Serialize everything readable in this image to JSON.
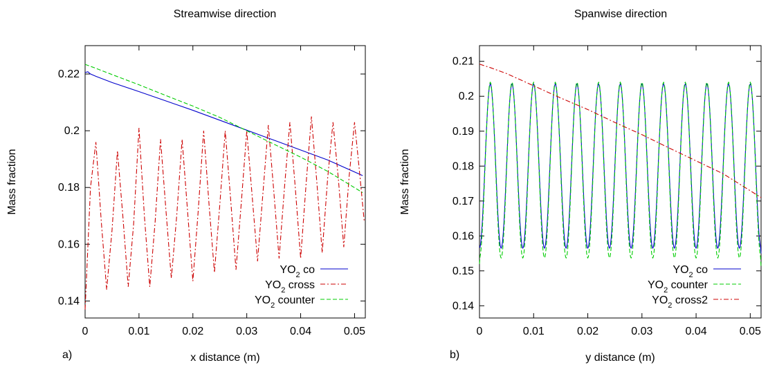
{
  "chart_data": [
    {
      "type": "line",
      "panel_label": "a)",
      "title": "Streamwise direction",
      "xlabel": "x distance (m)",
      "ylabel": "Mass fraction",
      "xlim": [
        0,
        0.052
      ],
      "ylim": [
        0.134,
        0.23
      ],
      "xticks": [
        "0",
        "0.01",
        "0.02",
        "0.03",
        "0.04",
        "0.05"
      ],
      "xtick_values": [
        0,
        0.01,
        0.02,
        0.03,
        0.04,
        0.05
      ],
      "yticks": [
        "0.14",
        "0.16",
        "0.18",
        "0.2",
        "0.22"
      ],
      "ytick_values": [
        0.14,
        0.16,
        0.18,
        0.2,
        0.22
      ],
      "legend_position": "bottom-right",
      "series": [
        {
          "name": "YO2 co",
          "legend_main": "YO",
          "legend_sub": "2",
          "legend_rest": " co",
          "color": "#0000cc",
          "dash": "solid",
          "x": [
            0,
            0.0005,
            0.001,
            0.002,
            0.005,
            0.01,
            0.015,
            0.02,
            0.025,
            0.03,
            0.035,
            0.04,
            0.045,
            0.0515
          ],
          "y": [
            0.2205,
            0.2208,
            0.22,
            0.2192,
            0.217,
            0.2138,
            0.2105,
            0.2072,
            0.2037,
            0.2002,
            0.1967,
            0.1932,
            0.1897,
            0.1842
          ]
        },
        {
          "name": "YO2 cross",
          "legend_main": "YO",
          "legend_sub": "2",
          "legend_rest": " cross",
          "color": "#cc0000",
          "dash": "dashdot",
          "x": [
            0,
            0.001,
            0.002,
            0.003,
            0.004,
            0.005,
            0.006,
            0.007,
            0.008,
            0.009,
            0.01,
            0.011,
            0.012,
            0.013,
            0.014,
            0.015,
            0.016,
            0.017,
            0.018,
            0.019,
            0.02,
            0.021,
            0.022,
            0.023,
            0.024,
            0.025,
            0.026,
            0.027,
            0.028,
            0.029,
            0.03,
            0.031,
            0.032,
            0.033,
            0.034,
            0.035,
            0.036,
            0.037,
            0.038,
            0.039,
            0.04,
            0.041,
            0.042,
            0.043,
            0.044,
            0.045,
            0.046,
            0.047,
            0.048,
            0.049,
            0.05,
            0.051,
            0.0518
          ],
          "y": [
            0.137,
            0.18,
            0.196,
            0.168,
            0.144,
            0.165,
            0.193,
            0.17,
            0.145,
            0.167,
            0.201,
            0.17,
            0.145,
            0.168,
            0.197,
            0.172,
            0.148,
            0.17,
            0.197,
            0.172,
            0.147,
            0.172,
            0.2,
            0.174,
            0.15,
            0.174,
            0.2,
            0.176,
            0.151,
            0.175,
            0.2,
            0.177,
            0.154,
            0.178,
            0.202,
            0.179,
            0.155,
            0.18,
            0.203,
            0.18,
            0.155,
            0.181,
            0.205,
            0.182,
            0.157,
            0.183,
            0.203,
            0.183,
            0.159,
            0.184,
            0.203,
            0.184,
            0.168
          ]
        },
        {
          "name": "YO2 counter",
          "legend_main": "YO",
          "legend_sub": "2",
          "legend_rest": " counter",
          "color": "#00cc00",
          "dash": "dashed",
          "x": [
            0,
            0.002,
            0.005,
            0.01,
            0.015,
            0.02,
            0.025,
            0.03,
            0.035,
            0.04,
            0.045,
            0.0515
          ],
          "y": [
            0.2234,
            0.222,
            0.2198,
            0.2162,
            0.2124,
            0.2087,
            0.2047,
            0.2,
            0.1953,
            0.1907,
            0.1857,
            0.1782
          ]
        }
      ]
    },
    {
      "type": "line",
      "panel_label": "b)",
      "title": "Spanwise direction",
      "xlabel": "y distance (m)",
      "ylabel": "Mass fraction",
      "xlim": [
        0,
        0.052
      ],
      "ylim": [
        0.1365,
        0.2145
      ],
      "xticks": [
        "0",
        "0.01",
        "0.02",
        "0.03",
        "0.04",
        "0.05"
      ],
      "xtick_values": [
        0,
        0.01,
        0.02,
        0.03,
        0.04,
        0.05
      ],
      "yticks": [
        "0.14",
        "0.15",
        "0.16",
        "0.17",
        "0.18",
        "0.19",
        "0.2",
        "0.21"
      ],
      "ytick_values": [
        0.14,
        0.15,
        0.16,
        0.17,
        0.18,
        0.19,
        0.2,
        0.21
      ],
      "legend_position": "bottom-right",
      "series": [
        {
          "name": "YO2 co",
          "legend_main": "YO",
          "legend_sub": "2",
          "legend_rest": " co",
          "color": "#0000cc",
          "dash": "solid",
          "periodic": {
            "period": 0.004,
            "phase": 0.002,
            "max": 0.2035,
            "min": 0.1565,
            "x_start": 0,
            "x_end": 0.052,
            "steps": 520,
            "start_value": 0.157,
            "end_value": 0.155
          }
        },
        {
          "name": "YO2 counter",
          "legend_main": "YO",
          "legend_sub": "2",
          "legend_rest": " counter",
          "color": "#00cc00",
          "dash": "dashed",
          "periodic": {
            "period": 0.004,
            "phase": 0.002,
            "max": 0.204,
            "min": 0.1537,
            "x_start": 0,
            "x_end": 0.052,
            "steps": 520,
            "start_value": 0.152,
            "end_value": 0.151
          }
        },
        {
          "name": "YO2 cross2",
          "legend_main": "YO",
          "legend_sub": "2",
          "legend_rest": " cross2",
          "color": "#cc0000",
          "dash": "dashdot",
          "x": [
            0,
            0.002,
            0.005,
            0.01,
            0.015,
            0.02,
            0.025,
            0.03,
            0.035,
            0.04,
            0.045,
            0.052
          ],
          "y": [
            0.2092,
            0.2082,
            0.2065,
            0.203,
            0.1995,
            0.1962,
            0.1925,
            0.189,
            0.1852,
            0.1815,
            0.1778,
            0.171
          ]
        }
      ]
    }
  ]
}
